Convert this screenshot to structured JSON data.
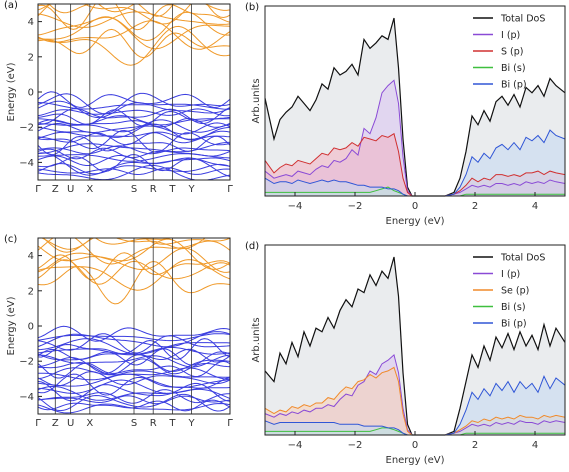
{
  "chart_data": [
    {
      "id": "a",
      "type": "line",
      "panel_label": "(a)",
      "ylabel": "Energy (eV)",
      "ylim": [
        -5,
        5
      ],
      "yticks": [
        4,
        2,
        0,
        -2,
        -4
      ],
      "kpoints": [
        "Γ",
        "Z",
        "U",
        "X",
        "S",
        "R",
        "T",
        "Y",
        "Γ"
      ],
      "kpos": [
        0,
        0.09,
        0.17,
        0.27,
        0.5,
        0.6,
        0.7,
        0.8,
        1.0
      ],
      "colors": {
        "conduction": "#f09a2a",
        "valence": "#3b3ee0"
      },
      "seed": 11
    },
    {
      "id": "b",
      "type": "area",
      "panel_label": "(b)",
      "xlabel": "Energy (eV)",
      "ylabel": "Arb.units",
      "xlim": [
        -5,
        5
      ],
      "xticks": [
        -4,
        -2,
        0,
        2,
        4
      ],
      "x": [
        -5,
        -4.7,
        -4.5,
        -4.3,
        -4.1,
        -3.9,
        -3.7,
        -3.5,
        -3.3,
        -3.1,
        -2.9,
        -2.7,
        -2.5,
        -2.3,
        -2.1,
        -1.9,
        -1.7,
        -1.5,
        -1.3,
        -1.1,
        -0.9,
        -0.7,
        -0.55,
        -0.4,
        -0.25,
        -0.1,
        0,
        0.5,
        1.0,
        1.3,
        1.5,
        1.7,
        1.9,
        2.1,
        2.3,
        2.5,
        2.7,
        2.9,
        3.1,
        3.3,
        3.5,
        3.7,
        3.9,
        4.1,
        4.3,
        4.5,
        4.7,
        5.0
      ],
      "series": [
        {
          "name": "Total DoS",
          "color": "#111111",
          "fill": "#e8eaec",
          "values": [
            0.55,
            0.32,
            0.43,
            0.47,
            0.5,
            0.56,
            0.52,
            0.48,
            0.54,
            0.63,
            0.6,
            0.72,
            0.68,
            0.7,
            0.74,
            0.68,
            0.88,
            0.83,
            0.86,
            0.9,
            0.88,
            1.0,
            0.72,
            0.32,
            0.05,
            0.0,
            0.0,
            0.0,
            0.0,
            0.02,
            0.1,
            0.25,
            0.45,
            0.4,
            0.48,
            0.42,
            0.53,
            0.56,
            0.51,
            0.57,
            0.5,
            0.61,
            0.58,
            0.62,
            0.56,
            0.66,
            0.62,
            0.58
          ]
        },
        {
          "name": "I (p)",
          "color": "#8a4ad6",
          "fill": "#d9c5f3",
          "values": [
            0.14,
            0.1,
            0.11,
            0.12,
            0.11,
            0.14,
            0.13,
            0.12,
            0.15,
            0.17,
            0.16,
            0.2,
            0.19,
            0.21,
            0.26,
            0.23,
            0.38,
            0.35,
            0.44,
            0.58,
            0.62,
            0.65,
            0.52,
            0.22,
            0.03,
            0.0,
            0.0,
            0.0,
            0.0,
            0.01,
            0.02,
            0.04,
            0.06,
            0.05,
            0.06,
            0.05,
            0.07,
            0.07,
            0.06,
            0.07,
            0.06,
            0.08,
            0.07,
            0.08,
            0.07,
            0.09,
            0.08,
            0.07
          ]
        },
        {
          "name": "S (p)",
          "color": "#d03030",
          "fill": "#f2b3c2",
          "values": [
            0.2,
            0.13,
            0.16,
            0.18,
            0.17,
            0.2,
            0.19,
            0.18,
            0.21,
            0.24,
            0.23,
            0.27,
            0.26,
            0.27,
            0.3,
            0.28,
            0.33,
            0.32,
            0.31,
            0.34,
            0.33,
            0.35,
            0.25,
            0.1,
            0.02,
            0.0,
            0.0,
            0.0,
            0.0,
            0.01,
            0.03,
            0.06,
            0.1,
            0.08,
            0.1,
            0.09,
            0.12,
            0.12,
            0.11,
            0.12,
            0.11,
            0.13,
            0.13,
            0.14,
            0.12,
            0.14,
            0.13,
            0.12
          ]
        },
        {
          "name": "Bi (s)",
          "color": "#3fbf3f",
          "fill": "#c9efc2",
          "values": [
            0.02,
            0.02,
            0.02,
            0.02,
            0.02,
            0.02,
            0.02,
            0.02,
            0.02,
            0.02,
            0.02,
            0.02,
            0.02,
            0.02,
            0.02,
            0.02,
            0.02,
            0.02,
            0.03,
            0.04,
            0.05,
            0.03,
            0.02,
            0.01,
            0.0,
            0.0,
            0.0,
            0.0,
            0.0,
            0.0,
            0.0,
            0.01,
            0.01,
            0.01,
            0.01,
            0.01,
            0.01,
            0.01,
            0.01,
            0.01,
            0.01,
            0.01,
            0.01,
            0.01,
            0.01,
            0.01,
            0.01,
            0.01
          ]
        },
        {
          "name": "Bi (p)",
          "color": "#3056d6",
          "fill": "#c2d8f2",
          "values": [
            0.1,
            0.07,
            0.08,
            0.08,
            0.07,
            0.09,
            0.08,
            0.07,
            0.08,
            0.09,
            0.08,
            0.09,
            0.08,
            0.08,
            0.07,
            0.06,
            0.06,
            0.05,
            0.05,
            0.05,
            0.04,
            0.04,
            0.03,
            0.01,
            0.0,
            0.0,
            0.0,
            0.0,
            0.0,
            0.01,
            0.05,
            0.12,
            0.22,
            0.19,
            0.24,
            0.21,
            0.27,
            0.29,
            0.26,
            0.3,
            0.26,
            0.33,
            0.31,
            0.34,
            0.3,
            0.37,
            0.34,
            0.32
          ]
        }
      ]
    },
    {
      "id": "c",
      "type": "line",
      "panel_label": "(c)",
      "ylabel": "Energy (eV)",
      "ylim": [
        -5,
        5
      ],
      "yticks": [
        4,
        2,
        0,
        -2,
        -4
      ],
      "kpoints": [
        "Γ",
        "Z",
        "U",
        "X",
        "S",
        "R",
        "T",
        "Y",
        "Γ"
      ],
      "kpos": [
        0,
        0.09,
        0.17,
        0.27,
        0.5,
        0.6,
        0.7,
        0.8,
        1.0
      ],
      "colors": {
        "conduction": "#f09a2a",
        "valence": "#3b3ee0"
      },
      "seed": 29
    },
    {
      "id": "d",
      "type": "area",
      "panel_label": "(d)",
      "xlabel": "Energy (eV)",
      "ylabel": "Arb.units",
      "xlim": [
        -5,
        5
      ],
      "xticks": [
        -4,
        -2,
        0,
        2,
        4
      ],
      "x": [
        -5,
        -4.7,
        -4.5,
        -4.3,
        -4.1,
        -3.9,
        -3.7,
        -3.5,
        -3.3,
        -3.1,
        -2.9,
        -2.7,
        -2.5,
        -2.3,
        -2.1,
        -1.9,
        -1.7,
        -1.5,
        -1.3,
        -1.1,
        -0.9,
        -0.7,
        -0.55,
        -0.4,
        -0.25,
        -0.1,
        0,
        0.5,
        1.0,
        1.3,
        1.5,
        1.7,
        1.9,
        2.1,
        2.3,
        2.5,
        2.7,
        2.9,
        3.1,
        3.3,
        3.5,
        3.7,
        3.9,
        4.1,
        4.3,
        4.5,
        4.7,
        5.0
      ],
      "series": [
        {
          "name": "Total DoS",
          "color": "#111111",
          "fill": "#e8eaec",
          "values": [
            0.36,
            0.3,
            0.46,
            0.4,
            0.52,
            0.44,
            0.58,
            0.5,
            0.6,
            0.58,
            0.66,
            0.6,
            0.7,
            0.76,
            0.72,
            0.82,
            0.8,
            0.9,
            0.84,
            0.92,
            0.88,
            1.0,
            0.78,
            0.35,
            0.06,
            0.0,
            0.0,
            0.0,
            0.0,
            0.02,
            0.15,
            0.3,
            0.45,
            0.38,
            0.5,
            0.42,
            0.55,
            0.49,
            0.57,
            0.48,
            0.58,
            0.5,
            0.56,
            0.48,
            0.62,
            0.5,
            0.6,
            0.52
          ]
        },
        {
          "name": "I (p)",
          "color": "#8a4ad6",
          "fill": "#d9c5f3",
          "values": [
            0.12,
            0.1,
            0.12,
            0.11,
            0.13,
            0.12,
            0.14,
            0.13,
            0.15,
            0.15,
            0.17,
            0.16,
            0.2,
            0.23,
            0.22,
            0.28,
            0.3,
            0.36,
            0.34,
            0.4,
            0.42,
            0.45,
            0.35,
            0.15,
            0.03,
            0.0,
            0.0,
            0.0,
            0.0,
            0.01,
            0.02,
            0.04,
            0.06,
            0.05,
            0.06,
            0.05,
            0.07,
            0.06,
            0.07,
            0.06,
            0.08,
            0.07,
            0.07,
            0.06,
            0.08,
            0.07,
            0.08,
            0.07
          ]
        },
        {
          "name": "Se (p)",
          "color": "#f08a2a",
          "fill": "#f7d2b7",
          "values": [
            0.15,
            0.12,
            0.14,
            0.13,
            0.16,
            0.15,
            0.17,
            0.16,
            0.18,
            0.18,
            0.21,
            0.2,
            0.24,
            0.27,
            0.26,
            0.3,
            0.31,
            0.34,
            0.32,
            0.35,
            0.36,
            0.38,
            0.3,
            0.12,
            0.02,
            0.0,
            0.0,
            0.0,
            0.0,
            0.01,
            0.03,
            0.05,
            0.08,
            0.07,
            0.09,
            0.08,
            0.1,
            0.09,
            0.1,
            0.09,
            0.11,
            0.1,
            0.1,
            0.09,
            0.11,
            0.1,
            0.11,
            0.1
          ]
        },
        {
          "name": "Bi (s)",
          "color": "#3fbf3f",
          "fill": "#c9efc2",
          "values": [
            0.02,
            0.02,
            0.02,
            0.02,
            0.02,
            0.02,
            0.02,
            0.02,
            0.02,
            0.02,
            0.02,
            0.02,
            0.02,
            0.02,
            0.02,
            0.02,
            0.02,
            0.02,
            0.03,
            0.04,
            0.04,
            0.03,
            0.02,
            0.01,
            0.0,
            0.0,
            0.0,
            0.0,
            0.0,
            0.0,
            0.0,
            0.01,
            0.01,
            0.01,
            0.01,
            0.01,
            0.01,
            0.01,
            0.01,
            0.01,
            0.01,
            0.01,
            0.01,
            0.01,
            0.01,
            0.01,
            0.01,
            0.01
          ]
        },
        {
          "name": "Bi (p)",
          "color": "#3056d6",
          "fill": "#c2d8f2",
          "values": [
            0.08,
            0.06,
            0.07,
            0.07,
            0.07,
            0.07,
            0.07,
            0.07,
            0.07,
            0.07,
            0.07,
            0.07,
            0.06,
            0.06,
            0.06,
            0.06,
            0.05,
            0.05,
            0.05,
            0.05,
            0.04,
            0.04,
            0.03,
            0.01,
            0.0,
            0.0,
            0.0,
            0.0,
            0.0,
            0.01,
            0.06,
            0.14,
            0.24,
            0.2,
            0.26,
            0.22,
            0.29,
            0.25,
            0.3,
            0.24,
            0.3,
            0.26,
            0.29,
            0.24,
            0.33,
            0.26,
            0.32,
            0.28
          ]
        }
      ]
    }
  ]
}
